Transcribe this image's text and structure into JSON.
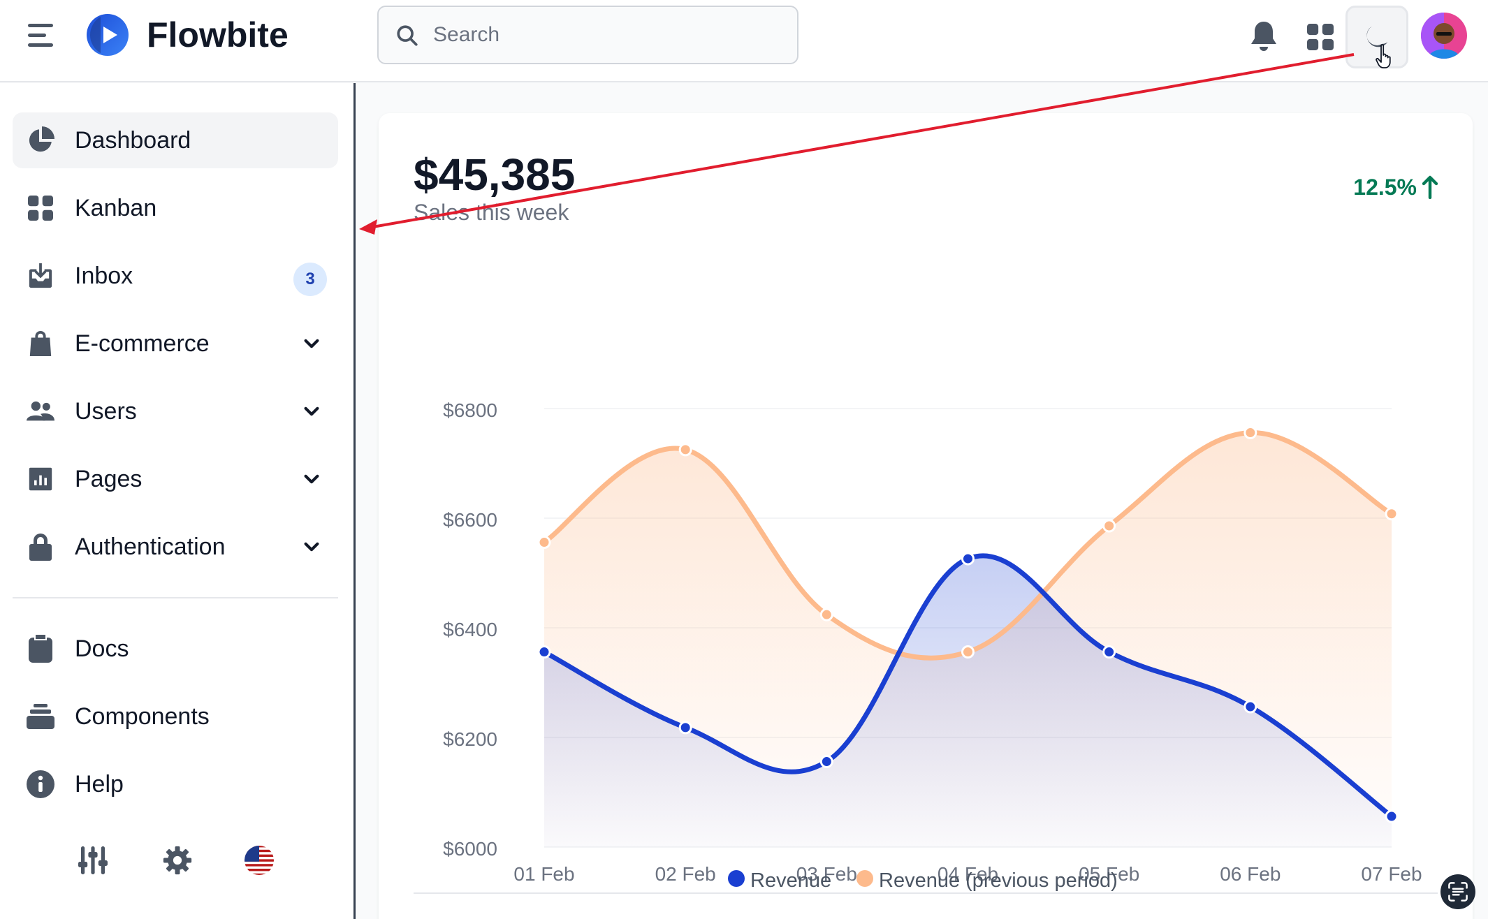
{
  "header": {
    "brand": "Flowbite",
    "search_placeholder": "Search",
    "icons": [
      "hamburger-icon",
      "flowbite-logo",
      "search-icon",
      "bell-icon",
      "apps-grid-icon",
      "moon-icon",
      "avatar"
    ]
  },
  "sidebar": {
    "items": [
      {
        "label": "Dashboard",
        "icon": "chart-pie-icon",
        "active": true
      },
      {
        "label": "Kanban",
        "icon": "grid-icon"
      },
      {
        "label": "Inbox",
        "icon": "inbox-icon",
        "badge": "3"
      },
      {
        "label": "E-commerce",
        "icon": "shopping-bag-icon",
        "expandable": true
      },
      {
        "label": "Users",
        "icon": "users-icon",
        "expandable": true
      },
      {
        "label": "Pages",
        "icon": "document-report-icon",
        "expandable": true
      },
      {
        "label": "Authentication",
        "icon": "lock-icon",
        "expandable": true
      }
    ],
    "secondary": [
      {
        "label": "Docs",
        "icon": "clipboard-icon"
      },
      {
        "label": "Components",
        "icon": "collection-icon"
      },
      {
        "label": "Help",
        "icon": "info-icon"
      }
    ],
    "footer_icons": [
      "adjustments-icon",
      "gear-icon",
      "us-flag-icon"
    ]
  },
  "sales": {
    "amount": "$45,385",
    "subtitle": "Sales this week",
    "growth": "12.5%"
  },
  "colors": {
    "revenue": "#1a3fd1",
    "previous": "#fdba8c",
    "accent_green": "#057a55"
  },
  "chart_data": {
    "type": "area",
    "categories": [
      "01 Feb",
      "02 Feb",
      "03 Feb",
      "04 Feb",
      "05 Feb",
      "06 Feb",
      "07 Feb"
    ],
    "ylim": [
      6000,
      6800
    ],
    "y_ticks": [
      "$6000",
      "$6200",
      "$6400",
      "$6600",
      "$6800"
    ],
    "series": [
      {
        "name": "Revenue",
        "values": [
          6356,
          6218,
          6156,
          6526,
          6356,
          6256,
          6056
        ]
      },
      {
        "name": "Revenue (previous period)",
        "values": [
          6556,
          6725,
          6424,
          6356,
          6586,
          6756,
          6608
        ]
      }
    ],
    "legend_position": "bottom",
    "grid": true
  }
}
